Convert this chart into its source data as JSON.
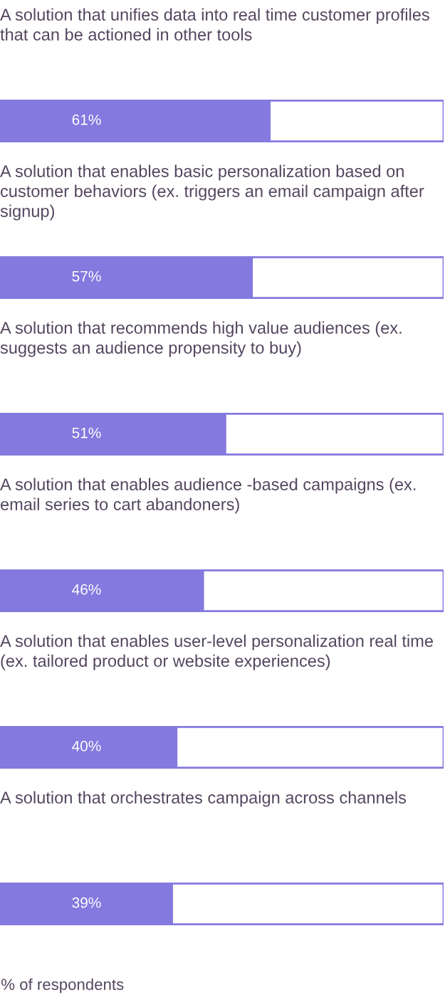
{
  "chart_data": {
    "type": "bar",
    "orientation": "horizontal",
    "categories": [
      "A solution that unifies data into real time customer profiles that can be actioned in other tools",
      "A solution that enables basic personalization based on customer behaviors (ex. triggers an email campaign after signup)",
      "A solution that recommends high value audiences (ex. suggests an audience propensity to buy)",
      "A solution that enables audience -based campaigns (ex. email series to cart abandoners)",
      "A solution that enables user-level personalization real time (ex. tailored product or website experiences)",
      "A solution that orchestrates campaign across channels"
    ],
    "values": [
      61,
      57,
      51,
      46,
      40,
      39
    ],
    "value_labels": [
      "61%",
      "57%",
      "51%",
      "46%",
      "40%",
      "39%"
    ],
    "color": "#8479de",
    "xlim": [
      0,
      100
    ],
    "annotations": [
      "% of respondents"
    ]
  }
}
